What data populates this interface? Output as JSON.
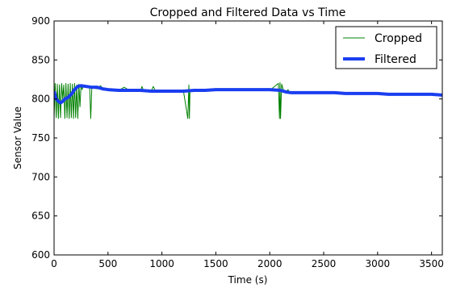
{
  "chart_data": {
    "type": "line",
    "title": "Cropped and Filtered Data vs Time",
    "xlabel": "Time (s)",
    "ylabel": "Sensor Value",
    "xlim": [
      0,
      3600
    ],
    "ylim": [
      600,
      900
    ],
    "xticks": [
      0,
      500,
      1000,
      1500,
      2000,
      2500,
      3000,
      3500
    ],
    "yticks": [
      600,
      650,
      700,
      750,
      800,
      850,
      900
    ],
    "legend_position": "top-right",
    "grid": false,
    "series": [
      {
        "name": "Cropped",
        "color": "#008000",
        "linewidth": "thin",
        "x": [
          0,
          10,
          20,
          30,
          40,
          50,
          60,
          70,
          80,
          90,
          100,
          110,
          120,
          130,
          140,
          150,
          160,
          170,
          180,
          190,
          200,
          210,
          220,
          230,
          240,
          250,
          260,
          270,
          280,
          290,
          300,
          310,
          320,
          330,
          340,
          350,
          360,
          400,
          430,
          460,
          500,
          560,
          600,
          650,
          700,
          750,
          800,
          815,
          830,
          900,
          920,
          940,
          1000,
          1100,
          1200,
          1240,
          1250,
          1255,
          1260,
          1300,
          1400,
          1500,
          1600,
          1700,
          1800,
          1900,
          2000,
          2080,
          2090,
          2095,
          2100,
          2110,
          2130,
          2150,
          2170,
          2180,
          2200,
          2300,
          2400,
          2500,
          2600,
          2700,
          2800,
          2900,
          3000,
          3100,
          3200,
          3300,
          3400,
          3500,
          3600
        ],
        "y": [
          775,
          820,
          776,
          819,
          775,
          818,
          776,
          820,
          800,
          818,
          775,
          820,
          776,
          819,
          775,
          820,
          776,
          819,
          775,
          820,
          776,
          818,
          775,
          819,
          790,
          818,
          812,
          817,
          815,
          816,
          815,
          816,
          814,
          815,
          775,
          815,
          814,
          813,
          817,
          812,
          812,
          811,
          811,
          815,
          811,
          811,
          810,
          816,
          810,
          810,
          816,
          810,
          810,
          810,
          810,
          775,
          818,
          775,
          811,
          811,
          812,
          812,
          812,
          812,
          812,
          812,
          811,
          820,
          775,
          821,
          775,
          819,
          810,
          809,
          812,
          808,
          808,
          807,
          807,
          807,
          807,
          806,
          806,
          806,
          806,
          806,
          806,
          806,
          806,
          805,
          805
        ]
      },
      {
        "name": "Filtered",
        "color": "#1a3ef0",
        "linewidth": "thick",
        "x": [
          0,
          20,
          40,
          60,
          80,
          100,
          130,
          160,
          190,
          220,
          250,
          300,
          350,
          400,
          450,
          500,
          600,
          700,
          800,
          900,
          1000,
          1100,
          1200,
          1300,
          1400,
          1500,
          1600,
          1700,
          1800,
          1900,
          2000,
          2100,
          2150,
          2200,
          2300,
          2400,
          2500,
          2600,
          2700,
          2800,
          2900,
          3000,
          3100,
          3200,
          3300,
          3400,
          3500,
          3600
        ],
        "y": [
          810,
          800,
          797,
          795,
          797,
          800,
          802,
          806,
          812,
          816,
          817,
          816,
          815,
          815,
          813,
          812,
          811,
          811,
          811,
          810,
          810,
          810,
          810,
          811,
          811,
          812,
          812,
          812,
          812,
          812,
          812,
          811,
          809,
          808,
          808,
          808,
          808,
          808,
          807,
          807,
          807,
          807,
          806,
          806,
          806,
          806,
          806,
          805
        ]
      }
    ]
  }
}
